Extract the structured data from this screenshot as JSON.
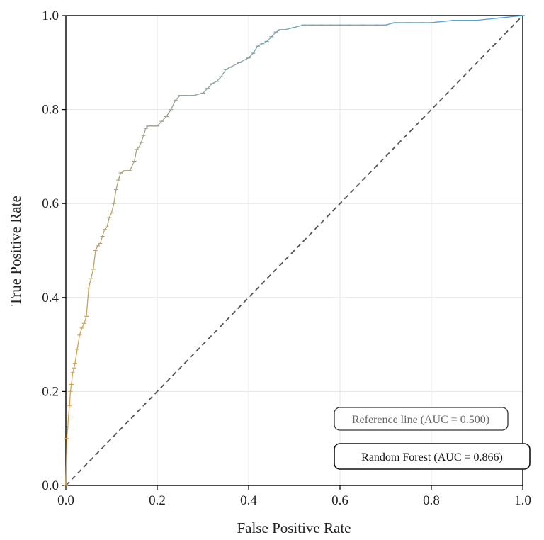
{
  "chart_data": {
    "type": "line",
    "title": "",
    "xlabel": "False Positive Rate",
    "ylabel": "True Positive Rate",
    "xlim": [
      0.0,
      1.0
    ],
    "ylim": [
      0.0,
      1.0
    ],
    "x_ticks": [
      "0.0",
      "0.2",
      "0.4",
      "0.6",
      "0.8",
      "1.0"
    ],
    "y_ticks": [
      "0.0",
      "0.2",
      "0.4",
      "0.6",
      "0.8",
      "1.0"
    ],
    "grid": true,
    "colormap_start": "#e8a33d",
    "colormap_end": "#4aa3e0",
    "series": [
      {
        "name": "Random Forest (AUC = 0.866)",
        "x": [
          0.0,
          0.002,
          0.004,
          0.006,
          0.008,
          0.01,
          0.012,
          0.015,
          0.018,
          0.02,
          0.025,
          0.03,
          0.035,
          0.04,
          0.045,
          0.05,
          0.055,
          0.06,
          0.065,
          0.07,
          0.075,
          0.08,
          0.085,
          0.09,
          0.095,
          0.1,
          0.105,
          0.11,
          0.115,
          0.12,
          0.13,
          0.14,
          0.15,
          0.155,
          0.16,
          0.165,
          0.17,
          0.175,
          0.18,
          0.19,
          0.2,
          0.21,
          0.22,
          0.23,
          0.24,
          0.25,
          0.26,
          0.28,
          0.3,
          0.31,
          0.32,
          0.33,
          0.34,
          0.35,
          0.36,
          0.38,
          0.4,
          0.41,
          0.42,
          0.43,
          0.44,
          0.45,
          0.46,
          0.47,
          0.48,
          0.5,
          0.52,
          0.54,
          0.56,
          0.58,
          0.6,
          0.62,
          0.65,
          0.68,
          0.7,
          0.72,
          0.75,
          0.78,
          0.8,
          0.85,
          0.9,
          0.95,
          1.0
        ],
        "y": [
          0.0,
          0.1,
          0.12,
          0.15,
          0.17,
          0.2,
          0.215,
          0.24,
          0.25,
          0.26,
          0.29,
          0.32,
          0.335,
          0.345,
          0.36,
          0.42,
          0.44,
          0.46,
          0.5,
          0.51,
          0.515,
          0.53,
          0.545,
          0.55,
          0.57,
          0.58,
          0.6,
          0.63,
          0.65,
          0.665,
          0.67,
          0.67,
          0.69,
          0.715,
          0.72,
          0.73,
          0.745,
          0.76,
          0.765,
          0.765,
          0.765,
          0.775,
          0.785,
          0.8,
          0.82,
          0.83,
          0.83,
          0.83,
          0.835,
          0.845,
          0.855,
          0.86,
          0.87,
          0.885,
          0.89,
          0.9,
          0.91,
          0.92,
          0.935,
          0.94,
          0.945,
          0.955,
          0.965,
          0.97,
          0.97,
          0.975,
          0.98,
          0.98,
          0.98,
          0.98,
          0.98,
          0.98,
          0.98,
          0.98,
          0.98,
          0.985,
          0.985,
          0.985,
          0.985,
          0.99,
          0.99,
          0.995,
          1.0
        ]
      },
      {
        "name": "Reference line (AUC = 0.500)",
        "x": [
          0.0,
          1.0
        ],
        "y": [
          0.0,
          1.0
        ],
        "style": "dashed",
        "color": "#555555"
      }
    ],
    "legend_position": "bottom-right"
  }
}
